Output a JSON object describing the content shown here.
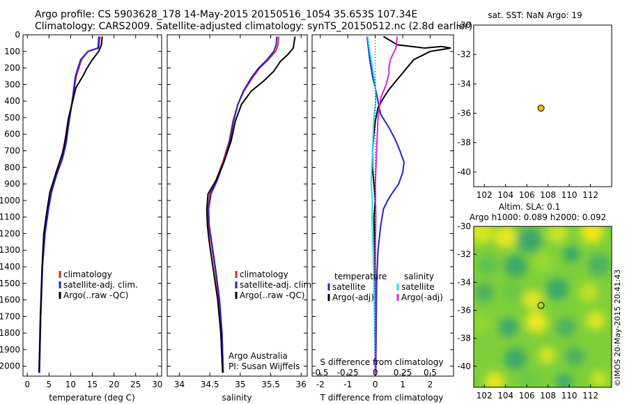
{
  "header": {
    "line1": "Argo profile: CS 5903628_178 14-May-2015 20150516_1054 35.653S 107.34E",
    "line2": "Climatology: CARS2009. Satellite-adjusted climatology: synTS_20150512.nc (2.8d earlier)"
  },
  "credit": "©IMOS 20-May-2015 20:41:43",
  "colors": {
    "climatology": "#e3241b",
    "satellite": "#1e22d6",
    "argo": "#000000",
    "sat_salinity": "#22e0e6",
    "argo_salinity": "#e020e0",
    "marker": "#f2b800"
  },
  "chart_data": [
    {
      "type": "line",
      "id": "temperature",
      "xlabel": "temperature (deg C)",
      "ylabel": "",
      "xlim": [
        -1,
        31
      ],
      "ylim": [
        2060,
        0
      ],
      "xticks": [
        0,
        5,
        10,
        15,
        20,
        25,
        30
      ],
      "yticks": [
        0,
        100,
        200,
        300,
        400,
        500,
        600,
        700,
        800,
        900,
        1000,
        1100,
        1200,
        1300,
        1400,
        1500,
        1600,
        1700,
        1800,
        1900,
        2000
      ],
      "legend": [
        "climatology",
        "satellite-adj. clim.",
        "Argo(..raw -QC)"
      ],
      "legend_position": "lower-center",
      "series": [
        {
          "name": "climatology",
          "color": "#e3241b",
          "points": [
            [
              16.8,
              10
            ],
            [
              16.6,
              50
            ],
            [
              16.5,
              80
            ],
            [
              14,
              100
            ],
            [
              12.5,
              150
            ],
            [
              11.3,
              250
            ],
            [
              10.7,
              350
            ],
            [
              10,
              450
            ],
            [
              9.2,
              550
            ],
            [
              8.6,
              650
            ],
            [
              7.8,
              750
            ],
            [
              6.5,
              850
            ],
            [
              5.5,
              950
            ],
            [
              4.8,
              1050
            ],
            [
              4,
              1200
            ],
            [
              3.5,
              1400
            ],
            [
              3.1,
              1700
            ],
            [
              2.8,
              2040
            ]
          ]
        },
        {
          "name": "satellite-adj. clim.",
          "color": "#1e22d6",
          "points": [
            [
              16.5,
              10
            ],
            [
              16.4,
              50
            ],
            [
              16.3,
              80
            ],
            [
              14,
              100
            ],
            [
              12.3,
              150
            ],
            [
              11.1,
              250
            ],
            [
              10.6,
              350
            ],
            [
              10.1,
              450
            ],
            [
              9.5,
              550
            ],
            [
              9,
              650
            ],
            [
              8.1,
              750
            ],
            [
              6.7,
              850
            ],
            [
              5.6,
              950
            ],
            [
              4.9,
              1050
            ],
            [
              4.1,
              1200
            ],
            [
              3.5,
              1400
            ],
            [
              3.1,
              1700
            ],
            [
              2.8,
              2040
            ]
          ]
        },
        {
          "name": "Argo(..raw -QC)",
          "color": "#000000",
          "points": [
            [
              17.3,
              10
            ],
            [
              17.1,
              60
            ],
            [
              16.5,
              100
            ],
            [
              15,
              150
            ],
            [
              13.8,
              200
            ],
            [
              12.8,
              250
            ],
            [
              11.2,
              320
            ],
            [
              10.3,
              420
            ],
            [
              9.5,
              500
            ],
            [
              9,
              600
            ],
            [
              8.3,
              700
            ],
            [
              7,
              800
            ],
            [
              5.2,
              950
            ],
            [
              4.6,
              1050
            ],
            [
              3.8,
              1200
            ],
            [
              3.4,
              1400
            ],
            [
              3,
              1700
            ],
            [
              2.7,
              2040
            ]
          ]
        }
      ]
    },
    {
      "type": "line",
      "id": "salinity",
      "xlabel": "salinity",
      "xlim": [
        33.8,
        36.1
      ],
      "ylim": [
        2060,
        0
      ],
      "xticks": [
        34,
        34.5,
        35,
        35.5,
        36
      ],
      "xticklabels": [
        "34",
        "34.5",
        "35",
        "35.5",
        "36"
      ],
      "legend": [
        "climatology",
        "satellite-adj. clim.",
        "Argo(..raw -QC)"
      ],
      "legend_position": "lower-right",
      "annotations": [
        "Argo Australia",
        "PI: Susan Wijffels"
      ],
      "series": [
        {
          "name": "climatology",
          "color": "#e3241b",
          "points": [
            [
              35.63,
              10
            ],
            [
              35.62,
              60
            ],
            [
              35.58,
              100
            ],
            [
              35.46,
              150
            ],
            [
              35.32,
              200
            ],
            [
              35.2,
              260
            ],
            [
              35.06,
              340
            ],
            [
              34.96,
              420
            ],
            [
              34.88,
              520
            ],
            [
              34.82,
              640
            ],
            [
              34.72,
              760
            ],
            [
              34.6,
              880
            ],
            [
              34.5,
              960
            ],
            [
              34.47,
              1050
            ],
            [
              34.48,
              1150
            ],
            [
              34.52,
              1250
            ],
            [
              34.58,
              1400
            ],
            [
              34.65,
              1600
            ],
            [
              34.7,
              1800
            ],
            [
              34.72,
              2040
            ]
          ]
        },
        {
          "name": "satellite-adj. clim.",
          "color": "#1e22d6",
          "points": [
            [
              35.6,
              10
            ],
            [
              35.59,
              60
            ],
            [
              35.55,
              100
            ],
            [
              35.44,
              150
            ],
            [
              35.3,
              200
            ],
            [
              35.18,
              260
            ],
            [
              35.05,
              340
            ],
            [
              34.96,
              420
            ],
            [
              34.89,
              520
            ],
            [
              34.83,
              640
            ],
            [
              34.74,
              760
            ],
            [
              34.62,
              880
            ],
            [
              34.52,
              960
            ],
            [
              34.48,
              1050
            ],
            [
              34.49,
              1150
            ],
            [
              34.53,
              1250
            ],
            [
              34.59,
              1400
            ],
            [
              34.66,
              1600
            ],
            [
              34.7,
              1800
            ],
            [
              34.72,
              2040
            ]
          ]
        },
        {
          "name": "Argo(..raw -QC)",
          "color": "#000000",
          "points": [
            [
              35.9,
              10
            ],
            [
              35.87,
              80
            ],
            [
              35.78,
              120
            ],
            [
              35.66,
              160
            ],
            [
              35.55,
              220
            ],
            [
              35.38,
              280
            ],
            [
              35.18,
              340
            ],
            [
              35.02,
              420
            ],
            [
              34.92,
              520
            ],
            [
              34.85,
              640
            ],
            [
              34.74,
              760
            ],
            [
              34.6,
              880
            ],
            [
              34.47,
              960
            ],
            [
              34.45,
              1050
            ],
            [
              34.46,
              1150
            ],
            [
              34.49,
              1250
            ],
            [
              34.55,
              1400
            ],
            [
              34.63,
              1600
            ],
            [
              34.68,
              1800
            ],
            [
              34.71,
              2040
            ]
          ]
        }
      ]
    },
    {
      "type": "line",
      "id": "difference",
      "xlabel": "T difference from climatology",
      "xlabel_top": "S difference from climatology",
      "xlim": [
        -2.3,
        2.85
      ],
      "ylim": [
        2060,
        0
      ],
      "xticks": [
        -2,
        -1,
        0,
        1,
        2
      ],
      "sticks": [
        -0.5,
        -0.25,
        0,
        0.25,
        0.5
      ],
      "sticklabels": [
        "-0.5",
        "-0.25",
        "0",
        "0.25",
        "0.5"
      ],
      "legend_temperature_title": "temperature",
      "legend_salinity_title": "salinity",
      "legend": [
        "satellite",
        "Argo(-adj)",
        "satellite",
        "Argo(-adj)"
      ],
      "series": [
        {
          "name": "satellite",
          "color": "#1e22d6",
          "points": [
            [
              -0.3,
              10
            ],
            [
              -0.25,
              80
            ],
            [
              -0.2,
              150
            ],
            [
              -0.1,
              250
            ],
            [
              0,
              320
            ],
            [
              0.1,
              400
            ],
            [
              0.2,
              480
            ],
            [
              0.5,
              560
            ],
            [
              0.75,
              640
            ],
            [
              0.9,
              700
            ],
            [
              1.05,
              770
            ],
            [
              1.0,
              830
            ],
            [
              0.85,
              900
            ],
            [
              0.6,
              960
            ],
            [
              0.45,
              1000
            ],
            [
              0.3,
              1050
            ],
            [
              0.2,
              1150
            ],
            [
              0.1,
              1300
            ],
            [
              0.05,
              1500
            ],
            [
              0.02,
              2040
            ]
          ]
        },
        {
          "name": "Argo(-adj)",
          "color": "#000000",
          "points": [
            [
              0.3,
              10
            ],
            [
              0.8,
              60
            ],
            [
              1.8,
              80
            ],
            [
              2.4,
              70
            ],
            [
              2.75,
              80
            ],
            [
              2,
              100
            ],
            [
              1.4,
              150
            ],
            [
              0.9,
              250
            ],
            [
              0.5,
              330
            ],
            [
              0.3,
              380
            ],
            [
              0.1,
              440
            ],
            [
              0,
              520
            ],
            [
              -0.05,
              600
            ],
            [
              -0.1,
              700
            ],
            [
              -0.1,
              800
            ],
            [
              -0.05,
              900
            ],
            [
              0,
              1000
            ],
            [
              -0.05,
              1100
            ],
            [
              -0.02,
              1300
            ],
            [
              0,
              1500
            ],
            [
              0,
              2040
            ]
          ]
        },
        {
          "name": "satellite",
          "color": "#22e0e6",
          "points": [
            [
              -0.28,
              10
            ],
            [
              -0.22,
              80
            ],
            [
              -0.1,
              200
            ],
            [
              0,
              300
            ],
            [
              0.02,
              400
            ],
            [
              -0.05,
              500
            ],
            [
              -0.1,
              700
            ],
            [
              -0.15,
              900
            ],
            [
              -0.1,
              1000
            ],
            [
              -0.12,
              1100
            ],
            [
              -0.08,
              1300
            ],
            [
              -0.05,
              1500
            ],
            [
              -0.02,
              1800
            ],
            [
              0,
              2040
            ]
          ]
        },
        {
          "name": "Argo(-adj)",
          "color": "#e020e0",
          "points": [
            [
              0.8,
              10
            ],
            [
              0.75,
              80
            ],
            [
              0.55,
              150
            ],
            [
              0.5,
              200
            ],
            [
              0.5,
              230
            ],
            [
              0.4,
              300
            ],
            [
              0.2,
              380
            ],
            [
              0.1,
              500
            ],
            [
              0.05,
              700
            ],
            [
              0,
              900
            ],
            [
              0.02,
              1100
            ],
            [
              0,
              1300
            ],
            [
              0.01,
              1600
            ],
            [
              0,
              2040
            ]
          ]
        }
      ]
    },
    {
      "type": "scatter",
      "id": "sst_map",
      "title": "sat. SST: NaN Argo: 19",
      "xlim": [
        101,
        114
      ],
      "ylim": [
        -41,
        -30
      ],
      "xticks": [
        102,
        104,
        106,
        108,
        110,
        112
      ],
      "yticks": [
        -30,
        -32,
        -34,
        -36,
        -38,
        -40
      ],
      "points": [
        [
          107.34,
          -35.653
        ]
      ]
    },
    {
      "type": "heatmap",
      "id": "sla_map",
      "title_line1": "Altim. SLA: 0.1",
      "title_line2": "Argo h1000: 0.089 h2000: 0.092",
      "xlim": [
        101,
        114
      ],
      "ylim": [
        -41.5,
        -30
      ],
      "xticks": [
        102,
        104,
        106,
        108,
        110,
        112
      ],
      "yticks": [
        -30,
        -32,
        -34,
        -36,
        -38,
        -40
      ],
      "points": [
        [
          107.34,
          -35.653
        ]
      ]
    }
  ]
}
